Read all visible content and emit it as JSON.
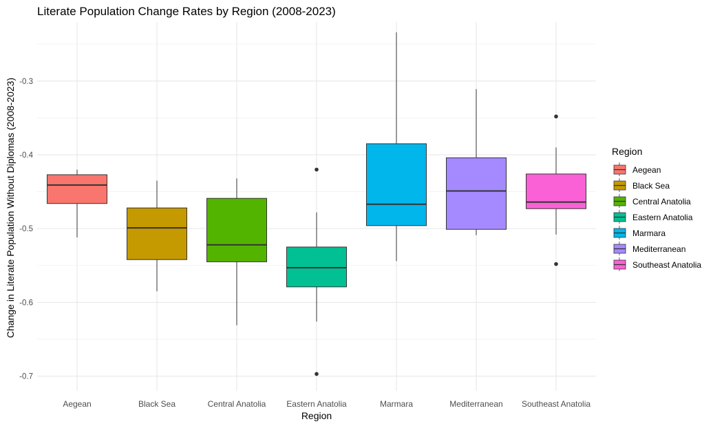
{
  "chart_data": {
    "type": "boxplot",
    "title": "Literate Population Change Rates by Region (2008-2023)",
    "xlabel": "Region",
    "ylabel": "Change in Literate Population Without Diplomas (2008-2023)",
    "ylim": [
      -0.72,
      -0.22
    ],
    "yticks": [
      -0.7,
      -0.6,
      -0.5,
      -0.4,
      -0.3
    ],
    "ytick_labels": [
      "-0.7",
      "-0.6",
      "-0.5",
      "-0.4",
      "-0.3"
    ],
    "grid": true,
    "legend": {
      "title": "Region",
      "position": "right"
    },
    "categories": [
      "Aegean",
      "Black Sea",
      "Central Anatolia",
      "Eastern Anatolia",
      "Marmara",
      "Mediterranean",
      "Southeast Anatolia"
    ],
    "series": [
      {
        "name": "Aegean",
        "color": "#F8766D",
        "whisker_low": -0.512,
        "q1": -0.466,
        "median": -0.441,
        "q3": -0.427,
        "whisker_high": -0.42,
        "outliers": []
      },
      {
        "name": "Black Sea",
        "color": "#C49A00",
        "whisker_low": -0.585,
        "q1": -0.542,
        "median": -0.499,
        "q3": -0.472,
        "whisker_high": -0.435,
        "outliers": []
      },
      {
        "name": "Central Anatolia",
        "color": "#53B400",
        "whisker_low": -0.631,
        "q1": -0.545,
        "median": -0.522,
        "q3": -0.459,
        "whisker_high": -0.432,
        "outliers": []
      },
      {
        "name": "Eastern Anatolia",
        "color": "#00C094",
        "whisker_low": -0.626,
        "q1": -0.579,
        "median": -0.553,
        "q3": -0.525,
        "whisker_high": -0.478,
        "outliers": [
          -0.42,
          -0.697
        ]
      },
      {
        "name": "Marmara",
        "color": "#00B6EB",
        "whisker_low": -0.544,
        "q1": -0.496,
        "median": -0.467,
        "q3": -0.385,
        "whisker_high": -0.234,
        "outliers": []
      },
      {
        "name": "Mediterranean",
        "color": "#A58AFF",
        "whisker_low": -0.509,
        "q1": -0.501,
        "median": -0.449,
        "q3": -0.404,
        "whisker_high": -0.311,
        "outliers": []
      },
      {
        "name": "Southeast Anatolia",
        "color": "#FB61D7",
        "whisker_low": -0.508,
        "q1": -0.473,
        "median": -0.464,
        "q3": -0.426,
        "whisker_high": -0.39,
        "outliers": [
          -0.348,
          -0.548
        ]
      }
    ]
  }
}
